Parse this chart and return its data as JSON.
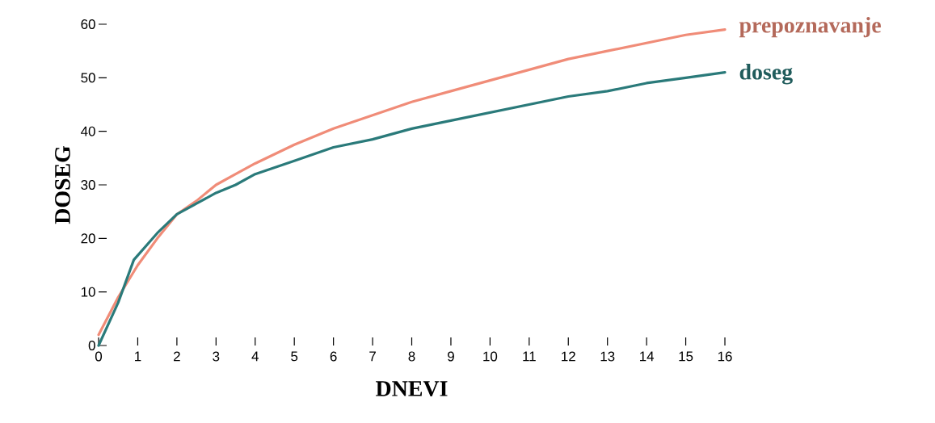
{
  "chart_data": {
    "type": "line",
    "xlabel": "DNEVI",
    "ylabel": "DOSEG",
    "xlim": [
      0,
      16
    ],
    "ylim": [
      0,
      60
    ],
    "xticks": [
      0,
      1,
      2,
      3,
      4,
      5,
      6,
      7,
      8,
      9,
      10,
      11,
      12,
      13,
      14,
      15,
      16
    ],
    "yticks": [
      0,
      10,
      20,
      30,
      40,
      50,
      60
    ],
    "grid": false,
    "legend": false,
    "series": [
      {
        "name": "prepoznavanje",
        "color": "#f08c78",
        "x": [
          0,
          0.5,
          1,
          1.5,
          2,
          2.5,
          3,
          3.5,
          4,
          5,
          6,
          7,
          8,
          9,
          10,
          11,
          12,
          13,
          14,
          15,
          16
        ],
        "values": [
          2,
          9,
          15,
          20,
          24.5,
          27,
          30,
          32,
          34,
          37.5,
          40.5,
          43,
          45.5,
          47.5,
          49.5,
          51.5,
          53.5,
          55,
          56.5,
          58,
          59
        ]
      },
      {
        "name": "doseg",
        "color": "#2a7a7a",
        "x": [
          0,
          0.5,
          0.9,
          1.5,
          2,
          2.5,
          3,
          3.5,
          4,
          5,
          6,
          7,
          8,
          9,
          10,
          11,
          12,
          13,
          14,
          15,
          16
        ],
        "values": [
          0,
          8,
          16,
          21,
          24.5,
          26.5,
          28.5,
          30,
          32,
          34.5,
          37,
          38.5,
          40.5,
          42,
          43.5,
          45,
          46.5,
          47.5,
          49,
          50,
          51
        ]
      }
    ]
  }
}
